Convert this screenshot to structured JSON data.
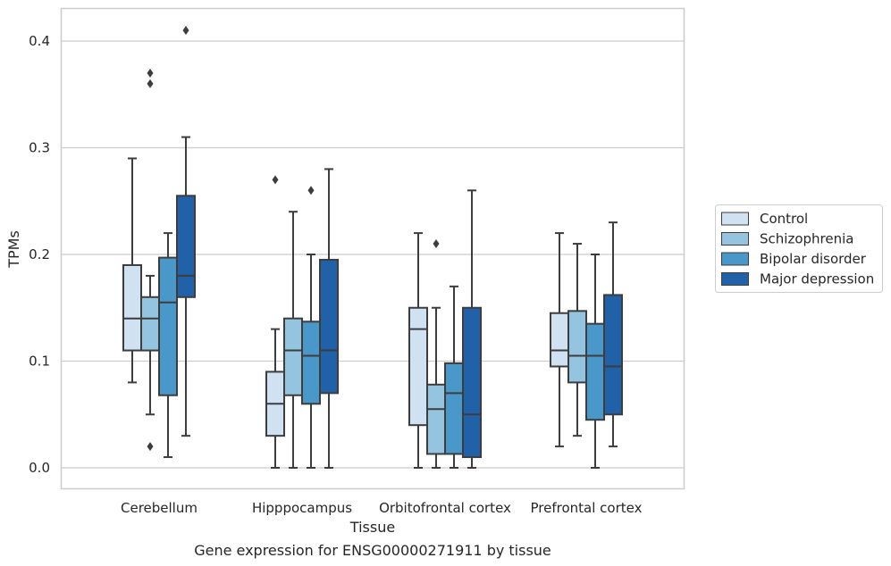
{
  "chart_data": {
    "type": "box",
    "title": "",
    "xlabel": "Tissue",
    "ylabel": "TPMs",
    "caption": "Gene expression for ENSG00000271911 by tissue",
    "ylim": [
      -0.02,
      0.43
    ],
    "yticks": [
      0.0,
      0.1,
      0.2,
      0.3,
      0.4
    ],
    "ytick_labels": [
      "0.0",
      "0.1",
      "0.2",
      "0.3",
      "0.4"
    ],
    "grid": "horizontal",
    "legend_position": "right",
    "categories": [
      "Cerebellum",
      "Hipppocampus",
      "Orbitofrontal cortex",
      "Prefrontal cortex"
    ],
    "series": [
      {
        "name": "Control",
        "color": "#d0e1f2",
        "boxes": [
          {
            "min": 0.08,
            "q1": 0.11,
            "median": 0.14,
            "q3": 0.19,
            "max": 0.29,
            "outliers": []
          },
          {
            "min": 0.0,
            "q1": 0.03,
            "median": 0.06,
            "q3": 0.09,
            "max": 0.13,
            "outliers": [
              0.27
            ]
          },
          {
            "min": 0.0,
            "q1": 0.04,
            "median": 0.13,
            "q3": 0.15,
            "max": 0.22,
            "outliers": []
          },
          {
            "min": 0.02,
            "q1": 0.095,
            "median": 0.11,
            "q3": 0.145,
            "max": 0.22,
            "outliers": []
          }
        ]
      },
      {
        "name": "Schizophrenia",
        "color": "#94c4df",
        "boxes": [
          {
            "min": 0.05,
            "q1": 0.11,
            "median": 0.14,
            "q3": 0.16,
            "max": 0.18,
            "outliers": [
              0.36,
              0.37,
              0.02
            ]
          },
          {
            "min": 0.0,
            "q1": 0.068,
            "median": 0.11,
            "q3": 0.14,
            "max": 0.24,
            "outliers": []
          },
          {
            "min": 0.0,
            "q1": 0.013,
            "median": 0.055,
            "q3": 0.078,
            "max": 0.15,
            "outliers": [
              0.21
            ]
          },
          {
            "min": 0.03,
            "q1": 0.08,
            "median": 0.105,
            "q3": 0.147,
            "max": 0.21,
            "outliers": []
          }
        ]
      },
      {
        "name": "Bipolar disorder",
        "color": "#4a98c9",
        "boxes": [
          {
            "min": 0.01,
            "q1": 0.068,
            "median": 0.155,
            "q3": 0.197,
            "max": 0.22,
            "outliers": []
          },
          {
            "min": 0.0,
            "q1": 0.06,
            "median": 0.105,
            "q3": 0.137,
            "max": 0.2,
            "outliers": [
              0.26
            ]
          },
          {
            "min": 0.0,
            "q1": 0.013,
            "median": 0.07,
            "q3": 0.098,
            "max": 0.17,
            "outliers": []
          },
          {
            "min": 0.0,
            "q1": 0.045,
            "median": 0.105,
            "q3": 0.135,
            "max": 0.2,
            "outliers": []
          }
        ]
      },
      {
        "name": "Major depression",
        "color": "#2161a8",
        "boxes": [
          {
            "min": 0.03,
            "q1": 0.16,
            "median": 0.18,
            "q3": 0.255,
            "max": 0.31,
            "outliers": [
              0.41
            ]
          },
          {
            "min": 0.0,
            "q1": 0.07,
            "median": 0.11,
            "q3": 0.195,
            "max": 0.28,
            "outliers": []
          },
          {
            "min": 0.0,
            "q1": 0.01,
            "median": 0.05,
            "q3": 0.15,
            "max": 0.26,
            "outliers": []
          },
          {
            "min": 0.02,
            "q1": 0.05,
            "median": 0.095,
            "q3": 0.162,
            "max": 0.23,
            "outliers": []
          }
        ]
      }
    ]
  },
  "colors": {
    "background": "#ffffff",
    "grid": "#cccccc",
    "axes_frame": "#cccccc",
    "box_edge": "#3d3d3d",
    "text": "#262626"
  }
}
